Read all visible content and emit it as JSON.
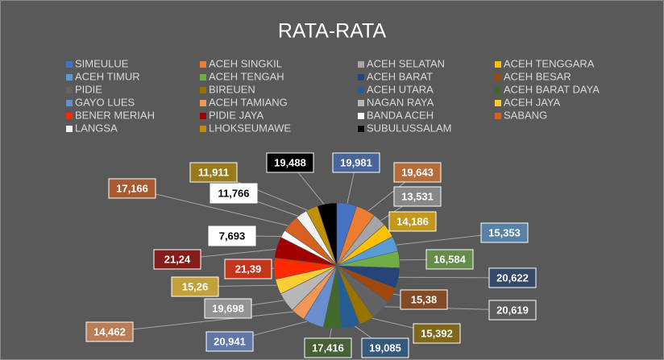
{
  "chart_data": {
    "type": "pie",
    "title": "RATA-RATA",
    "categories": [
      "SIMEULUE",
      "ACEH SINGKIL",
      "ACEH SELATAN",
      "ACEH TENGGARA",
      "ACEH TIMUR",
      "ACEH TENGAH",
      "ACEH BARAT",
      "ACEH BESAR",
      "PIDIE",
      "BIREUEN",
      "ACEH UTARA",
      "ACEH BARAT DAYA",
      "GAYO LUES",
      "ACEH TAMIANG",
      "NAGAN RAYA",
      "ACEH JAYA",
      "BENER MERIAH",
      "PIDIE JAYA",
      "BANDA ACEH",
      "SABANG",
      "LANGSA",
      "LHOKSEUMAWE",
      "SUBULUSSALAM"
    ],
    "values": [
      19.981,
      19.643,
      13.531,
      14.186,
      15.353,
      16.584,
      20.622,
      15.38,
      20.619,
      15.392,
      19.085,
      17.416,
      20.941,
      14.462,
      19.698,
      15.26,
      21.39,
      21.24,
      7.693,
      17.166,
      11.766,
      11.911,
      19.488
    ],
    "value_labels": [
      "19,981",
      "19,643",
      "13,531",
      "14,186",
      "15,353",
      "16,584",
      "20,622",
      "15,38",
      "20,619",
      "15,392",
      "19,085",
      "17,416",
      "20,941",
      "14,462",
      "19,698",
      "15,26",
      "21,39",
      "21,24",
      "7,693",
      "17,166",
      "11,766",
      "11,911",
      "19,488"
    ],
    "colors": [
      "#4472c4",
      "#ed7d31",
      "#a5a5a5",
      "#ffc000",
      "#5b9bd5",
      "#70ad47",
      "#264478",
      "#9e480e",
      "#636363",
      "#997300",
      "#255e91",
      "#43682b",
      "#698ed0",
      "#f1975a",
      "#b7b7b7",
      "#ffcd33",
      "#ff2a00",
      "#a00000",
      "#ffffff",
      "#d86020",
      "#f2f2f2",
      "#c09000",
      "#000000"
    ],
    "legend": "top"
  }
}
